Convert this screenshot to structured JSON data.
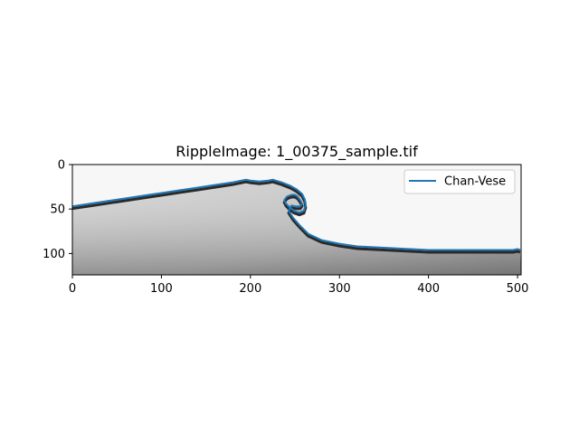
{
  "chart_data": {
    "type": "line",
    "title": "RippleImage: 1_00375_sample.tif",
    "xlabel": "",
    "ylabel": "",
    "xlim": [
      0,
      504
    ],
    "ylim": [
      124,
      0
    ],
    "x_ticks": [
      0,
      100,
      200,
      300,
      400,
      500
    ],
    "y_ticks": [
      0,
      50,
      100
    ],
    "grid": false,
    "legend_position": "top-right",
    "background": "grayscale image of a breaking wave",
    "series": [
      {
        "name": "Chan-Vese",
        "color": "#1f77b4",
        "x": [
          0,
          20,
          40,
          60,
          80,
          100,
          120,
          140,
          160,
          180,
          190,
          195,
          200,
          210,
          220,
          225,
          235,
          245,
          252,
          258,
          261,
          262,
          260,
          255,
          249,
          244,
          240,
          238,
          241,
          246,
          250,
          253,
          256,
          258,
          256,
          251,
          246,
          243,
          248,
          255,
          265,
          280,
          300,
          320,
          340,
          360,
          380,
          400,
          420,
          440,
          460,
          480,
          495,
          500,
          503
        ],
        "y": [
          47,
          44,
          41,
          38,
          35,
          32,
          29,
          26,
          23,
          20,
          18,
          17,
          18,
          19,
          18,
          17,
          20,
          24,
          28,
          33,
          39,
          46,
          52,
          54,
          52,
          48,
          44,
          40,
          36,
          34,
          34,
          36,
          40,
          44,
          47,
          47,
          46,
          52,
          60,
          68,
          78,
          85,
          89,
          92,
          93,
          94,
          95,
          96,
          96,
          96,
          96,
          96,
          96,
          95,
          96
        ]
      }
    ]
  }
}
